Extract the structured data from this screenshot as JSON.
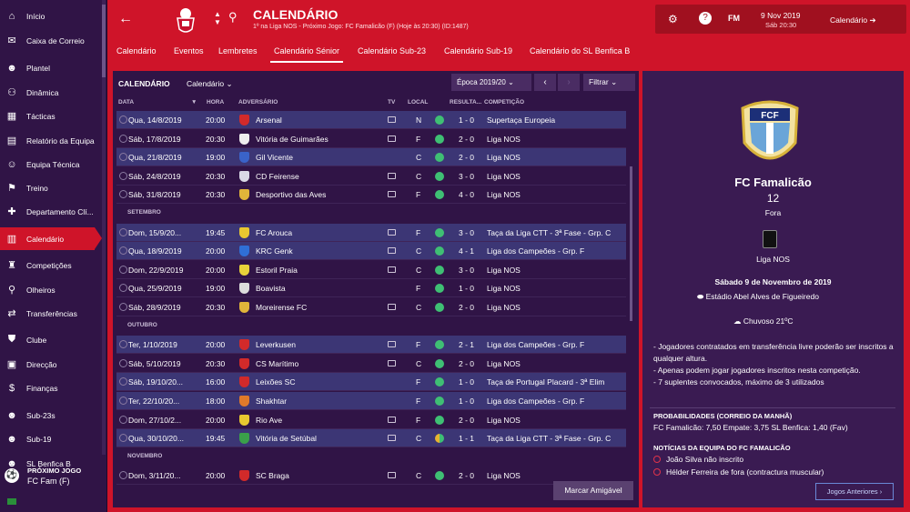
{
  "sidebar": {
    "items": [
      {
        "label": "Início",
        "icon": "home-icon"
      },
      {
        "label": "Caixa de Correio",
        "icon": "inbox-icon"
      },
      {
        "label": "Plantel",
        "icon": "squad-icon"
      },
      {
        "label": "Dinâmica",
        "icon": "dynamics-icon"
      },
      {
        "label": "Tácticas",
        "icon": "tactics-icon"
      },
      {
        "label": "Relatório da Equipa",
        "icon": "report-icon"
      },
      {
        "label": "Equipa Técnica",
        "icon": "staff-icon"
      },
      {
        "label": "Treino",
        "icon": "training-icon"
      },
      {
        "label": "Departamento Clí...",
        "icon": "medical-icon"
      },
      {
        "label": "Calendário",
        "icon": "calendar-icon",
        "active": true
      },
      {
        "label": "Competições",
        "icon": "trophy-icon"
      },
      {
        "label": "Olheiros",
        "icon": "scouting-icon"
      },
      {
        "label": "Transferências",
        "icon": "transfers-icon"
      },
      {
        "label": "Clube",
        "icon": "club-icon"
      },
      {
        "label": "Direcção",
        "icon": "board-icon"
      },
      {
        "label": "Finanças",
        "icon": "finances-icon"
      },
      {
        "label": "Sub-23s",
        "icon": "u23-icon"
      },
      {
        "label": "Sub-19",
        "icon": "u19-icon"
      },
      {
        "label": "SL Benfica B",
        "icon": "b-team-icon"
      }
    ],
    "next_label": "PRÓXIMO JOGO",
    "next_team": "FC Fam (F)"
  },
  "header": {
    "title": "CALENDÁRIO",
    "subtitle": "1º na Liga NOS - Próximo Jogo: FC Famalicão (F) (Hoje às 20:30) (ID:1487)",
    "fm": "FM",
    "date": "9 Nov 2019",
    "time": "Sáb 20:30",
    "cal": "Calendário"
  },
  "tabs": [
    "Calendário",
    "Eventos",
    "Lembretes",
    "Calendário Sénior",
    "Calendário Sub-23",
    "Calendário Sub-19",
    "Calendário do SL Benfica B"
  ],
  "toolbar": {
    "title": "CALENDÁRIO",
    "dropdown": "Calendário",
    "season": "Época 2019/20",
    "filter": "Filtrar"
  },
  "columns": {
    "data": "DATA",
    "hora": "HORA",
    "adv": "ADVERSÁRIO",
    "tv": "TV",
    "local": "LOCAL",
    "res": "RESULTA...",
    "comp": "COMPETIÇÃO"
  },
  "sections": [
    "SETEMBRO",
    "OUTUBRO",
    "NOVEMBRO"
  ],
  "matches": [
    {
      "date": "Qua, 14/8/2019",
      "time": "20:00",
      "opp": "Arsenal",
      "tv": true,
      "loc": "N",
      "res": "1 - 0",
      "comp": "Supertaça Europeia",
      "hl": true,
      "c": "#d22a2a"
    },
    {
      "date": "Sáb, 17/8/2019",
      "time": "20:30",
      "opp": "Vitória de Guimarães",
      "tv": true,
      "loc": "F",
      "res": "2 - 0",
      "comp": "Liga NOS",
      "hl": false,
      "c": "#eeeeee"
    },
    {
      "date": "Qua, 21/8/2019",
      "time": "19:00",
      "opp": "Gil Vicente",
      "tv": false,
      "loc": "C",
      "res": "2 - 0",
      "comp": "Liga NOS",
      "hl": true,
      "c": "#3a63c9"
    },
    {
      "date": "Sáb, 24/8/2019",
      "time": "20:30",
      "opp": "CD Feirense",
      "tv": true,
      "loc": "C",
      "res": "3 - 0",
      "comp": "Liga NOS",
      "hl": false,
      "c": "#d9d9e6"
    },
    {
      "date": "Sáb, 31/8/2019",
      "time": "20:30",
      "opp": "Desportivo das Aves",
      "tv": true,
      "loc": "F",
      "res": "4 - 0",
      "comp": "Liga NOS",
      "hl": false,
      "c": "#e0b43a"
    },
    {
      "date": "Dom, 15/9/20...",
      "time": "19:45",
      "opp": "FC Arouca",
      "tv": true,
      "loc": "F",
      "res": "3 - 0",
      "comp": "Taça da Liga CTT - 3ª Fase - Grp. C",
      "hl": true,
      "c": "#e8c830"
    },
    {
      "date": "Qua, 18/9/2019",
      "time": "20:00",
      "opp": "KRC Genk",
      "tv": true,
      "loc": "C",
      "res": "4 - 1",
      "comp": "Liga dos Campeões - Grp. F",
      "hl": true,
      "c": "#2f6fd6"
    },
    {
      "date": "Dom, 22/9/2019",
      "time": "20:00",
      "opp": "Estoril Praia",
      "tv": true,
      "loc": "C",
      "res": "3 - 0",
      "comp": "Liga NOS",
      "hl": false,
      "c": "#e8d23a"
    },
    {
      "date": "Qua, 25/9/2019",
      "time": "19:00",
      "opp": "Boavista",
      "tv": false,
      "loc": "F",
      "res": "1 - 0",
      "comp": "Liga NOS",
      "hl": false,
      "c": "#dcdcdc"
    },
    {
      "date": "Sáb, 28/9/2019",
      "time": "20:30",
      "opp": "Moreirense FC",
      "tv": true,
      "loc": "C",
      "res": "2 - 0",
      "comp": "Liga NOS",
      "hl": false,
      "c": "#e0b43a"
    },
    {
      "date": "Ter, 1/10/2019",
      "time": "20:00",
      "opp": "Leverkusen",
      "tv": true,
      "loc": "F",
      "res": "2 - 1",
      "comp": "Liga dos Campeões - Grp. F",
      "hl": true,
      "c": "#d22a2a"
    },
    {
      "date": "Sáb, 5/10/2019",
      "time": "20:30",
      "opp": "CS Marítimo",
      "tv": true,
      "loc": "C",
      "res": "2 - 0",
      "comp": "Liga NOS",
      "hl": false,
      "c": "#d22a2a"
    },
    {
      "date": "Sáb, 19/10/20...",
      "time": "16:00",
      "opp": "Leixões SC",
      "tv": false,
      "loc": "F",
      "res": "1 - 0",
      "comp": "Taça de Portugal Placard - 3ª Elim",
      "hl": true,
      "c": "#d22a2a"
    },
    {
      "date": "Ter, 22/10/20...",
      "time": "18:00",
      "opp": "Shakhtar",
      "tv": false,
      "loc": "F",
      "res": "1 - 0",
      "comp": "Liga dos Campeões - Grp. F",
      "hl": true,
      "c": "#e07a2a"
    },
    {
      "date": "Dom, 27/10/2...",
      "time": "20:00",
      "opp": "Rio Ave",
      "tv": true,
      "loc": "F",
      "res": "2 - 0",
      "comp": "Liga NOS",
      "hl": false,
      "c": "#e8c830"
    },
    {
      "date": "Qua, 30/10/20...",
      "time": "19:45",
      "opp": "Vitória de Setúbal",
      "tv": true,
      "loc": "C",
      "res": "1 - 1",
      "comp": "Taça da Liga CTT - 3ª Fase - Grp. C",
      "hl": true,
      "c": "#3aa04a",
      "half": true
    },
    {
      "date": "Dom, 3/11/20...",
      "time": "20:00",
      "opp": "SC Braga",
      "tv": true,
      "loc": "C",
      "res": "2 - 0",
      "comp": "Liga NOS",
      "hl": false,
      "c": "#d22a2a"
    }
  ],
  "amigavel": "Marcar Amigável",
  "detail": {
    "team": "FC Famalicão",
    "number": "12",
    "venue": "Fora",
    "crest_text": "FCF",
    "league": "Liga NOS",
    "date": "Sábado 9 de Novembro de 2019",
    "stadium": "Estádio Abel Alves de Figueiredo",
    "weather": "Chuvoso 21ºC",
    "notes": [
      "- Jogadores contratados em transferência livre poderão ser inscritos a qualquer altura.",
      "- Apenas podem jogar jogadores inscritos nesta competição.",
      "- 7 suplentes convocados, máximo de 3 utilizados"
    ],
    "prob_title": "PROBABILIDADES (CORREIO DA MANHÃ)",
    "prob": "FC Famalicão: 7,50 Empate: 3,75 SL Benfica: 1,40 (Fav)",
    "news_title": "NOTÍCIAS DA EQUIPA DO FC FAMALICÃO",
    "news": [
      "João Silva não inscrito",
      "Hélder Ferreira de fora (contractura muscular)"
    ],
    "prev": "Jogos Anteriores"
  },
  "colors": {
    "primary": "#cf1429",
    "panel": "#301446",
    "win": "#3fbf74"
  }
}
